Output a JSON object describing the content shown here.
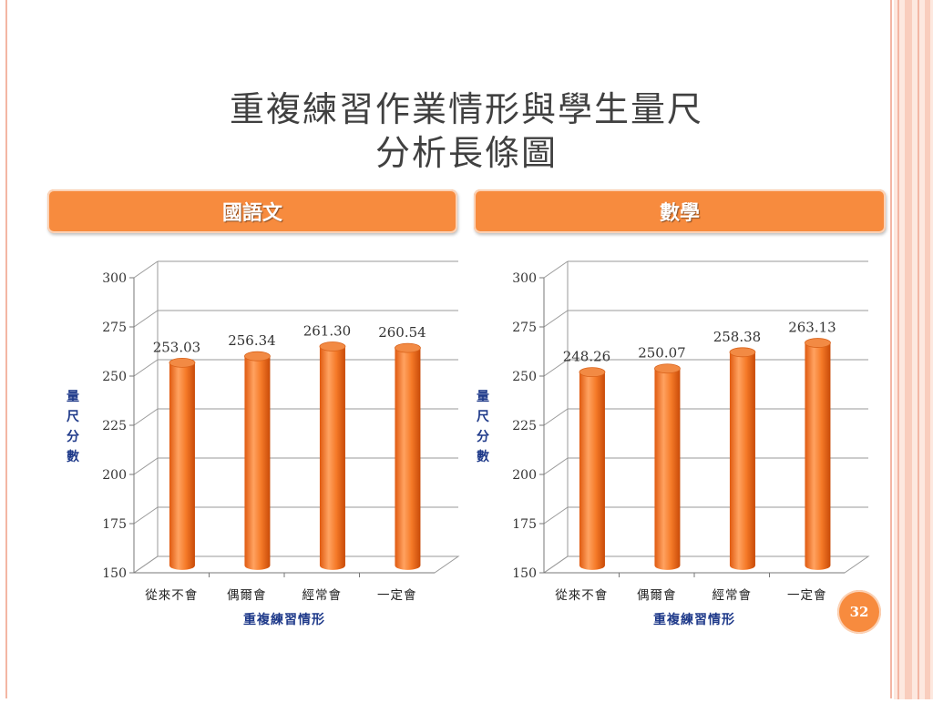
{
  "slide": {
    "title_line1": "重複練習作業情形與學生量尺",
    "title_line2": "分析長條圖",
    "page_number": "32"
  },
  "colors": {
    "accent": "#f78b3e",
    "bar": "#f0731f",
    "axis_title": "#1f3a8a",
    "frame": "#f3b6a4"
  },
  "headers": {
    "left": "國語文",
    "right": "數學"
  },
  "chart_data": [
    {
      "type": "bar",
      "title": "國語文",
      "categories": [
        "從來不會",
        "偶爾會",
        "經常會",
        "一定會"
      ],
      "values": [
        253.03,
        256.34,
        261.3,
        260.54
      ],
      "value_labels": [
        "253.03",
        "256.34",
        "261.30",
        "260.54"
      ],
      "xlabel": "重複練習情形",
      "ylabel": "量尺分數",
      "ylim": [
        150,
        300
      ],
      "yticks": [
        150,
        175,
        200,
        225,
        250,
        275,
        300
      ],
      "grid": true,
      "style": "3d-cylinder"
    },
    {
      "type": "bar",
      "title": "數學",
      "categories": [
        "從來不會",
        "偶爾會",
        "經常會",
        "一定會"
      ],
      "values": [
        248.26,
        250.07,
        258.38,
        263.13
      ],
      "value_labels": [
        "248.26",
        "250.07",
        "258.38",
        "263.13"
      ],
      "xlabel": "重複練習情形",
      "ylabel": "量尺分數",
      "ylim": [
        150,
        300
      ],
      "yticks": [
        150,
        175,
        200,
        225,
        250,
        275,
        300
      ],
      "grid": true,
      "style": "3d-cylinder"
    }
  ]
}
